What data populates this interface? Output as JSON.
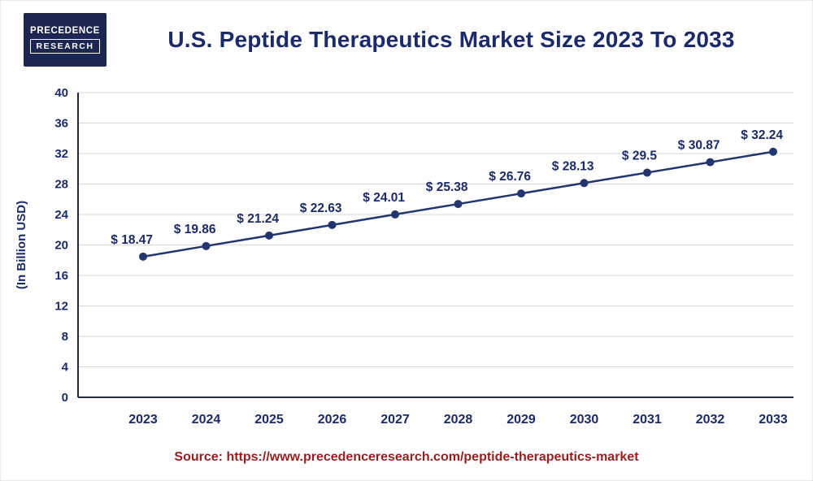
{
  "colors": {
    "navy": "#1b2a6b",
    "line": "#22356f",
    "grid": "#d9d9d9",
    "axis": "#1f2a44",
    "source_text": "#9b1c1c",
    "logo_bg": "#1b2653"
  },
  "logo": {
    "line1": "PRECEDENCE",
    "line2": "RESEARCH"
  },
  "header": {
    "title": "U.S. Peptide Therapeutics Market Size 2023 To 2033"
  },
  "chart_data": {
    "type": "line",
    "categories": [
      "2023",
      "2024",
      "2025",
      "2026",
      "2027",
      "2028",
      "2029",
      "2030",
      "2031",
      "2032",
      "2033"
    ],
    "values": [
      18.47,
      19.86,
      21.24,
      22.63,
      24.01,
      25.38,
      26.76,
      28.13,
      29.5,
      30.87,
      32.24
    ],
    "point_labels": [
      "$ 18.47",
      "$ 19.86",
      "$ 21.24",
      "$ 22.63",
      "$ 24.01",
      "$ 25.38",
      "$ 26.76",
      "$ 28.13",
      "$ 29.5",
      "$ 30.87",
      "$ 32.24"
    ],
    "title": "U.S. Peptide Therapeutics Market Size 2023 To 2033",
    "xlabel": "",
    "ylabel": "(In Billion USD)",
    "ylim": [
      0,
      40
    ],
    "ytick_step": 4,
    "grid": "horizontal",
    "legend": "none"
  },
  "source": {
    "label": "Source: https://www.precedenceresearch.com/peptide-therapeutics-market"
  }
}
